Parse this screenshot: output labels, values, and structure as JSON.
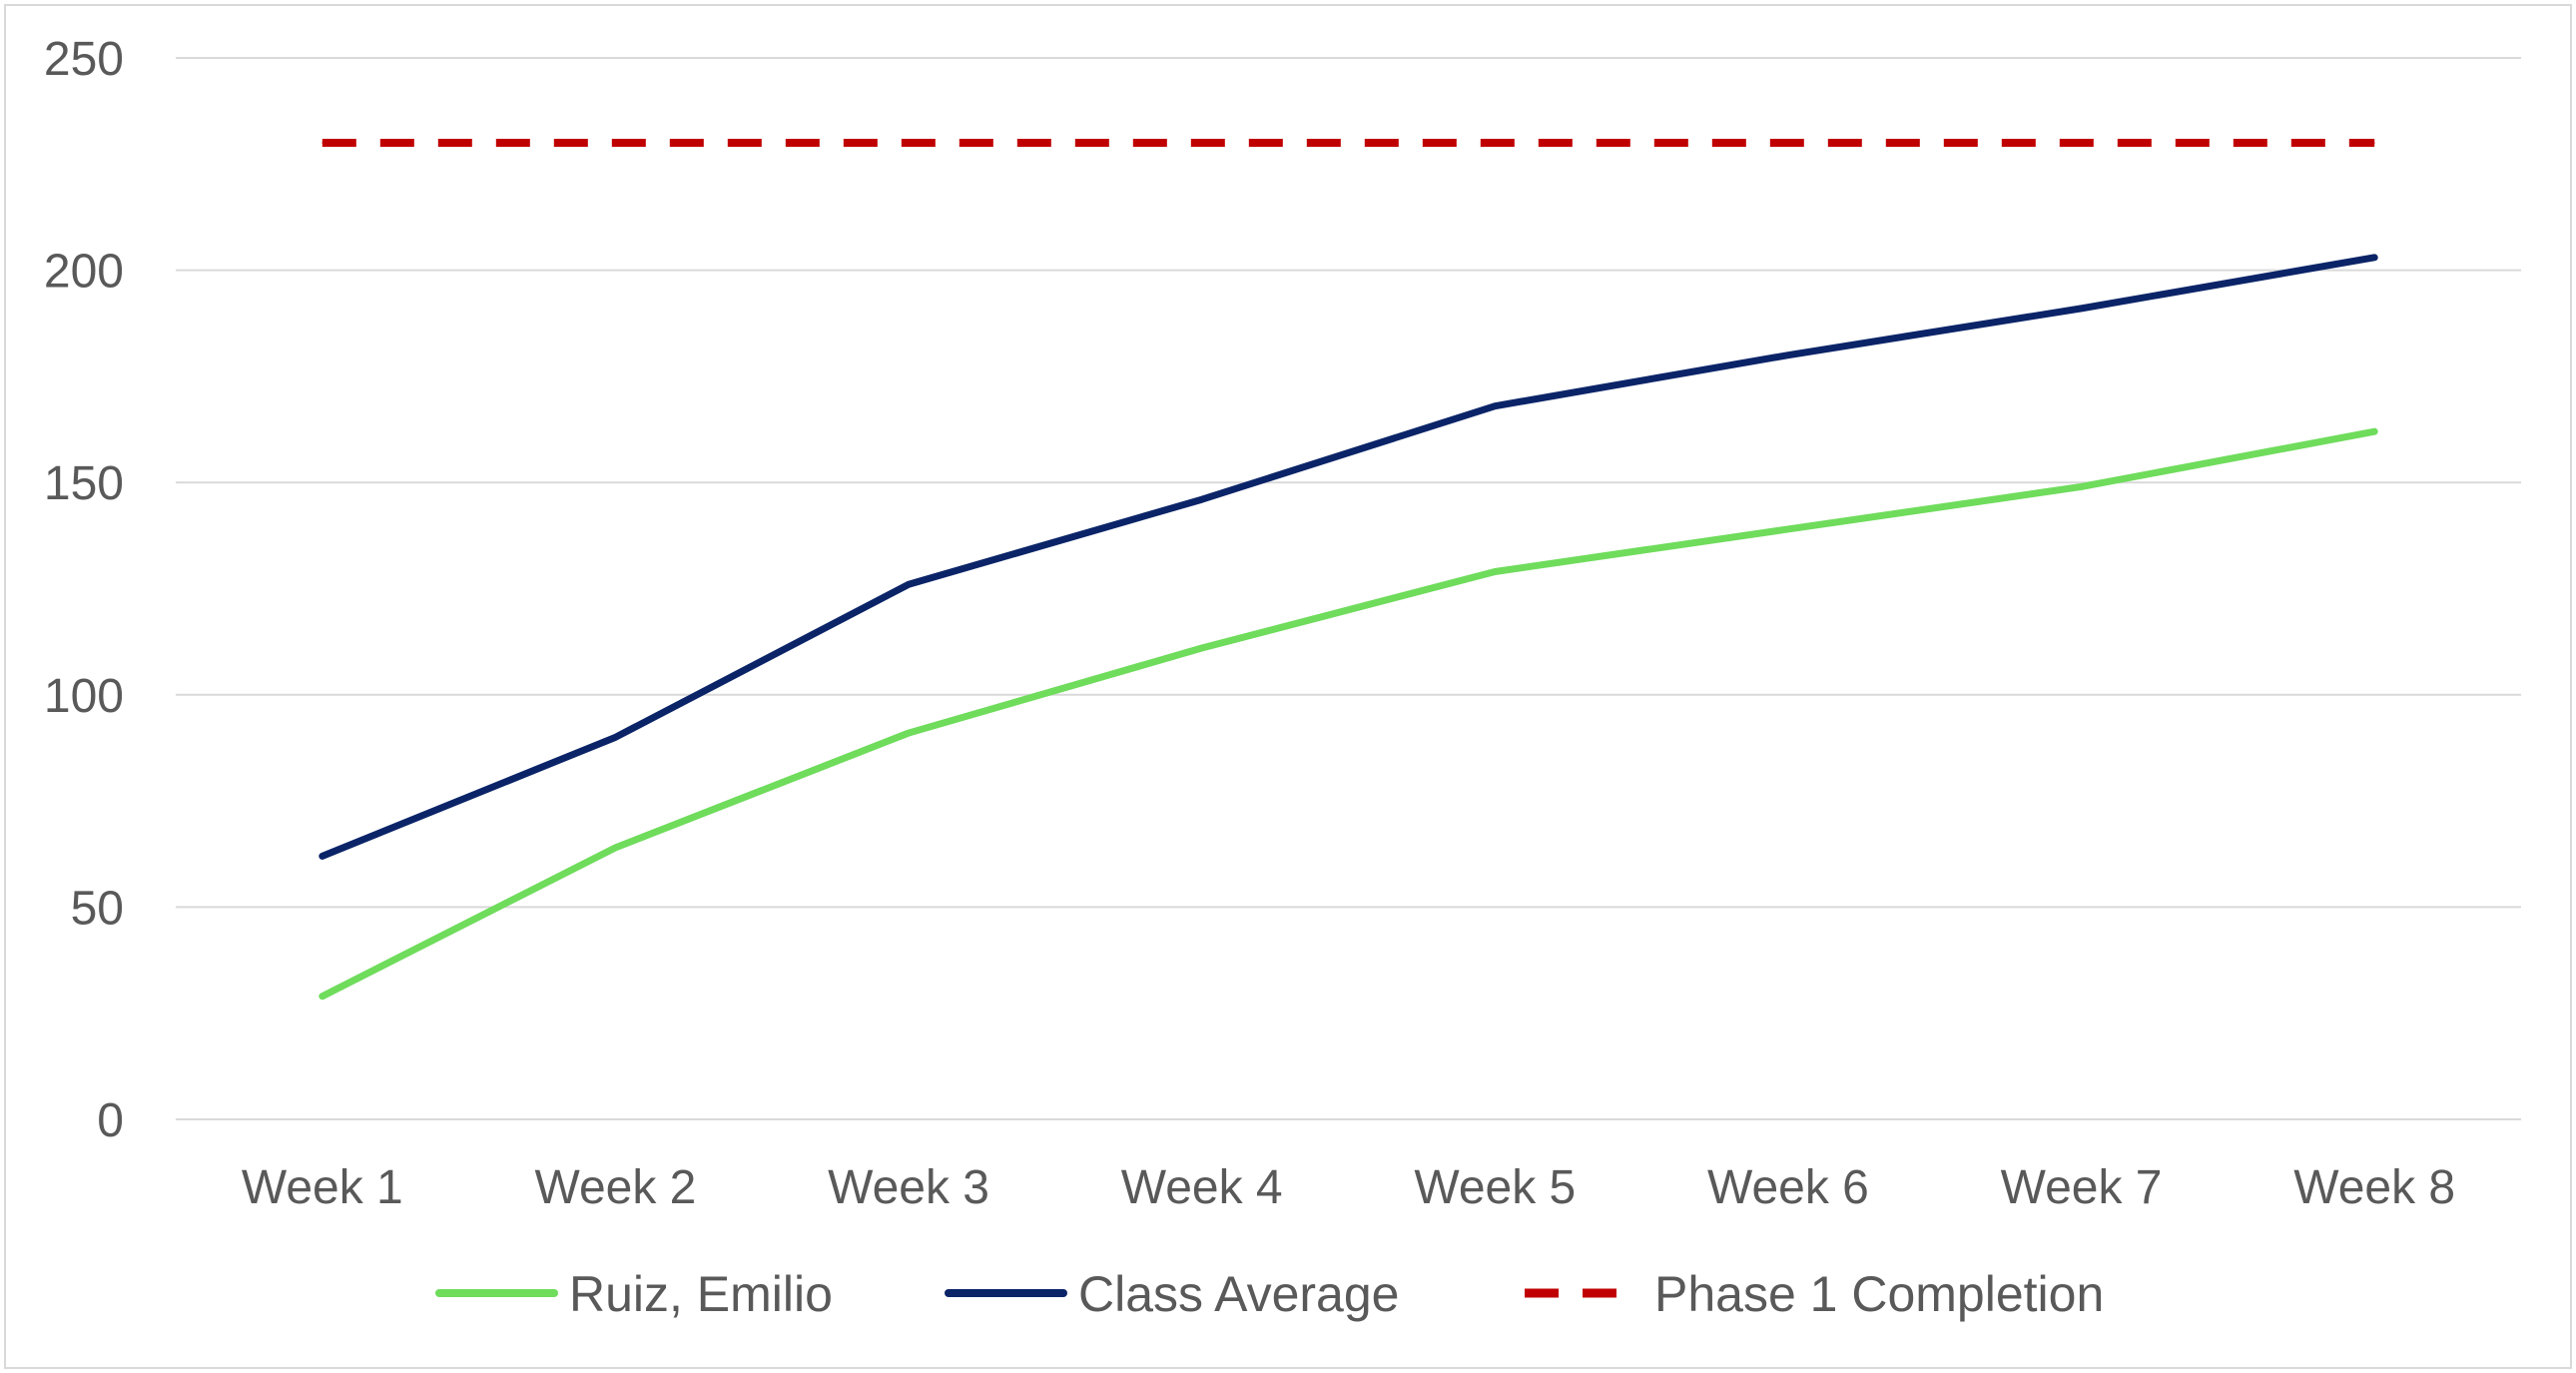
{
  "chart_data": {
    "type": "line",
    "categories": [
      "Week 1",
      "Week 2",
      "Week 3",
      "Week 4",
      "Week 5",
      "Week 6",
      "Week 7",
      "Week 8"
    ],
    "ylim": [
      0,
      250
    ],
    "yticks": [
      0,
      50,
      100,
      150,
      200,
      250
    ],
    "grid": true,
    "legend_position": "bottom",
    "series": [
      {
        "name": "Ruiz, Emilio",
        "values": [
          29,
          64,
          91,
          111,
          129,
          139,
          149,
          162
        ],
        "color": "#6fdc5c",
        "style": "solid"
      },
      {
        "name": "Class Average",
        "values": [
          62,
          90,
          126,
          146,
          168,
          180,
          191,
          203
        ],
        "color": "#0b2468",
        "style": "solid"
      },
      {
        "name": "Phase 1 Completion",
        "values": [
          230,
          230,
          230,
          230,
          230,
          230,
          230,
          230
        ],
        "color": "#c00000",
        "style": "dashed"
      }
    ]
  }
}
